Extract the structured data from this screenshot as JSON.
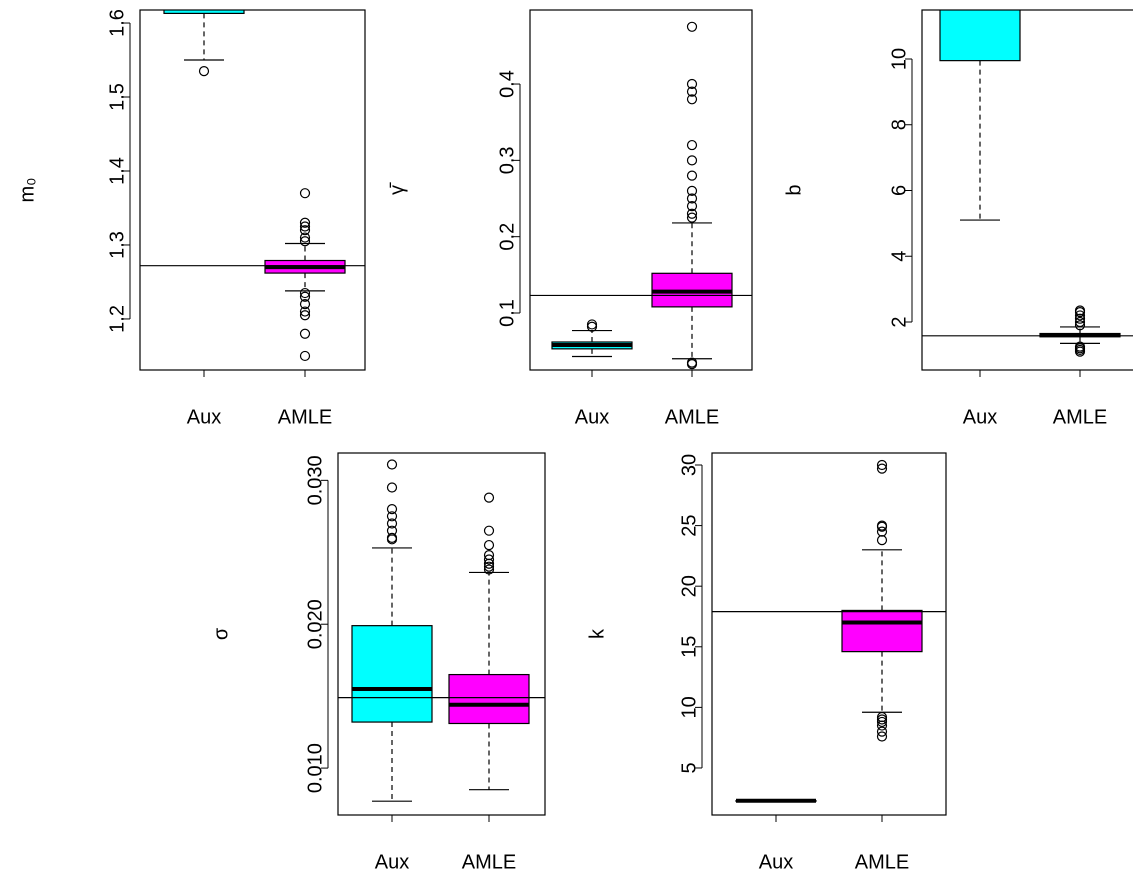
{
  "chart_data": [
    {
      "type": "box",
      "y_label": "m₀",
      "categories": [
        "Aux",
        "AMLE"
      ],
      "colors": [
        "#00ffff",
        "#ff00ff"
      ],
      "ylim": [
        1.131,
        1.6176
      ],
      "yticks": [
        1.2,
        1.3,
        1.4,
        1.5,
        1.6
      ],
      "reference_line": 1.272,
      "boxes": [
        {
          "whisker_low": 1.55,
          "q1": 1.613,
          "median": null,
          "q3": null,
          "whisker_high": null,
          "outliers": [
            1.535
          ]
        },
        {
          "whisker_low": 1.238,
          "q1": 1.262,
          "median": 1.27,
          "q3": 1.279,
          "whisker_high": 1.302,
          "outliers": [
            1.37,
            1.33,
            1.325,
            1.32,
            1.31,
            1.305,
            1.235,
            1.23,
            1.22,
            1.21,
            1.205,
            1.18,
            1.15
          ]
        }
      ]
    },
    {
      "type": "box",
      "y_label": "γ̄",
      "categories": [
        "Aux",
        "AMLE"
      ],
      "colors": [
        "#00ffff",
        "#ff00ff"
      ],
      "ylim": [
        0.0253,
        0.497
      ],
      "yticks": [
        0.1,
        0.2,
        0.3,
        0.4
      ],
      "reference_line": 0.123,
      "boxes": [
        {
          "whisker_low": 0.043,
          "q1": 0.053,
          "median": 0.058,
          "q3": 0.062,
          "whisker_high": 0.077,
          "outliers": [
            0.082,
            0.085
          ]
        },
        {
          "whisker_low": 0.04,
          "q1": 0.108,
          "median": 0.128,
          "q3": 0.152,
          "whisker_high": 0.218,
          "outliers": [
            0.225,
            0.23,
            0.24,
            0.25,
            0.26,
            0.28,
            0.3,
            0.32,
            0.38,
            0.39,
            0.4,
            0.475,
            0.035,
            0.033
          ]
        }
      ]
    },
    {
      "type": "box",
      "y_label": "b",
      "categories": [
        "Aux",
        "AMLE"
      ],
      "colors": [
        "#00ffff",
        "#ff00ff"
      ],
      "ylim": [
        0.54,
        11.49
      ],
      "yticks": [
        2,
        4,
        6,
        8,
        10
      ],
      "reference_line": 1.58,
      "boxes": [
        {
          "whisker_low": 5.1,
          "q1": 9.95,
          "median": null,
          "q3": null,
          "whisker_high": null,
          "outliers": []
        },
        {
          "whisker_low": 1.35,
          "q1": 1.55,
          "median": 1.6,
          "q3": 1.65,
          "whisker_high": 1.85,
          "outliers": [
            1.9,
            2.0,
            2.1,
            2.2,
            2.3,
            2.35,
            1.25,
            1.2,
            1.15,
            1.1
          ]
        }
      ]
    },
    {
      "type": "box",
      "y_label": "σ",
      "categories": [
        "Aux",
        "AMLE"
      ],
      "colors": [
        "#00ffff",
        "#ff00ff"
      ],
      "ylim": [
        0.00674,
        0.0319
      ],
      "yticks": [
        {
          "value": 0.01,
          "label": "0.010"
        },
        {
          "value": 0.02,
          "label": "0.020"
        },
        {
          "value": 0.03,
          "label": "0.030"
        }
      ],
      "reference_line": 0.0149,
      "boxes": [
        {
          "whisker_low": 0.0077,
          "q1": 0.0132,
          "median": 0.0155,
          "q3": 0.0199,
          "whisker_high": 0.0253,
          "outliers": [
            0.0259,
            0.026,
            0.0265,
            0.027,
            0.0275,
            0.028,
            0.0295,
            0.0311
          ]
        },
        {
          "whisker_low": 0.0085,
          "q1": 0.0131,
          "median": 0.0144,
          "q3": 0.0165,
          "whisker_high": 0.0236,
          "outliers": [
            0.0238,
            0.024,
            0.0242,
            0.0245,
            0.0248,
            0.0255,
            0.0265,
            0.0288
          ]
        }
      ]
    },
    {
      "type": "box",
      "y_label": "k",
      "categories": [
        "Aux",
        "AMLE"
      ],
      "colors": [
        "#00ffff",
        "#ff00ff"
      ],
      "ylim": [
        1.12,
        30.99
      ],
      "yticks": [
        5,
        10,
        15,
        20,
        25,
        30
      ],
      "reference_line": 17.9,
      "boxes": [
        {
          "whisker_low": 2.3,
          "q1": 2.3,
          "median": 2.3,
          "q3": 2.3,
          "whisker_high": 2.3,
          "outliers": []
        },
        {
          "whisker_low": 9.6,
          "q1": 14.6,
          "median": 17,
          "q3": 18,
          "whisker_high": 23,
          "outliers": [
            23.8,
            24.5,
            24.9,
            25,
            29.7,
            30,
            9.2,
            9,
            8.8,
            8.5,
            8,
            7.6
          ]
        }
      ]
    }
  ]
}
